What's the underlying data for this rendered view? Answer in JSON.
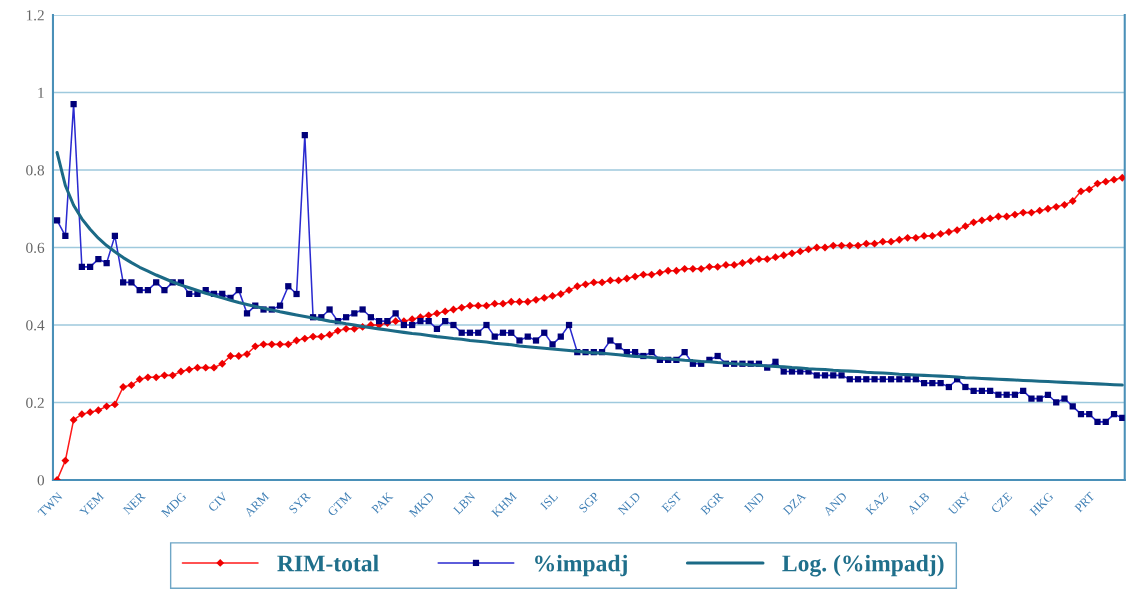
{
  "chart_data": {
    "type": "line",
    "categories": [
      "TWN",
      null,
      null,
      null,
      null,
      "YEM",
      null,
      null,
      null,
      null,
      "NER",
      null,
      null,
      null,
      null,
      "MDG",
      null,
      null,
      null,
      null,
      "CIV",
      null,
      null,
      null,
      null,
      "ARM",
      null,
      null,
      null,
      null,
      "SYR",
      null,
      null,
      null,
      null,
      "GTM",
      null,
      null,
      null,
      null,
      "PAK",
      null,
      null,
      null,
      null,
      "MKD",
      null,
      null,
      null,
      null,
      "LBN",
      null,
      null,
      null,
      null,
      "KHM",
      null,
      null,
      null,
      null,
      "ISL",
      null,
      null,
      null,
      null,
      "SGP",
      null,
      null,
      null,
      null,
      "NLD",
      null,
      null,
      null,
      null,
      "EST",
      null,
      null,
      null,
      null,
      "BGR",
      null,
      null,
      null,
      null,
      "IND",
      null,
      null,
      null,
      null,
      "DZA",
      null,
      null,
      null,
      null,
      "AND",
      null,
      null,
      null,
      null,
      "KAZ",
      null,
      null,
      null,
      null,
      "ALB",
      null,
      null,
      null,
      null,
      "URY",
      null,
      null,
      null,
      null,
      "CZE",
      null,
      null,
      null,
      null,
      "HKG",
      null,
      null,
      null,
      null,
      "PRT",
      null,
      null,
      null,
      null
    ],
    "series": [
      {
        "name": "RIM-total",
        "color": "#ff1a1a",
        "marker": "diamond",
        "values": [
          0,
          0.05,
          0.155,
          0.17,
          0.175,
          0.18,
          0.19,
          0.195,
          0.24,
          0.245,
          0.26,
          0.265,
          0.265,
          0.27,
          0.27,
          0.28,
          0.285,
          0.29,
          0.29,
          0.29,
          0.3,
          0.32,
          0.32,
          0.325,
          0.345,
          0.35,
          0.35,
          0.35,
          0.35,
          0.36,
          0.365,
          0.37,
          0.37,
          0.375,
          0.385,
          0.39,
          0.39,
          0.395,
          0.4,
          0.4,
          0.405,
          0.41,
          0.41,
          0.415,
          0.42,
          0.425,
          0.43,
          0.435,
          0.44,
          0.445,
          0.45,
          0.45,
          0.45,
          0.455,
          0.455,
          0.46,
          0.46,
          0.46,
          0.465,
          0.47,
          0.475,
          0.48,
          0.49,
          0.5,
          0.505,
          0.51,
          0.51,
          0.515,
          0.515,
          0.52,
          0.525,
          0.53,
          0.53,
          0.535,
          0.54,
          0.54,
          0.545,
          0.545,
          0.545,
          0.55,
          0.55,
          0.555,
          0.555,
          0.56,
          0.565,
          0.57,
          0.57,
          0.575,
          0.58,
          0.585,
          0.59,
          0.595,
          0.6,
          0.6,
          0.605,
          0.605,
          0.605,
          0.605,
          0.61,
          0.61,
          0.615,
          0.615,
          0.62,
          0.625,
          0.625,
          0.63,
          0.63,
          0.635,
          0.64,
          0.645,
          0.655,
          0.665,
          0.67,
          0.675,
          0.68,
          0.68,
          0.685,
          0.69,
          0.69,
          0.695,
          0.7,
          0.705,
          0.71,
          0.72,
          0.745,
          0.75,
          0.765,
          0.77,
          0.775,
          0.78
        ]
      },
      {
        "name": "%impadj",
        "color": "#2a2ad0",
        "marker": "square",
        "values": [
          0.67,
          0.63,
          0.97,
          0.55,
          0.55,
          0.57,
          0.56,
          0.63,
          0.51,
          0.51,
          0.49,
          0.49,
          0.51,
          0.49,
          0.51,
          0.51,
          0.48,
          0.48,
          0.49,
          0.48,
          0.48,
          0.47,
          0.49,
          0.43,
          0.45,
          0.44,
          0.44,
          0.45,
          0.5,
          0.48,
          0.89,
          0.42,
          0.42,
          0.44,
          0.41,
          0.42,
          0.43,
          0.44,
          0.42,
          0.41,
          0.41,
          0.43,
          0.4,
          0.4,
          0.41,
          0.41,
          0.39,
          0.41,
          0.4,
          0.38,
          0.38,
          0.38,
          0.4,
          0.37,
          0.38,
          0.38,
          0.36,
          0.37,
          0.36,
          0.38,
          0.35,
          0.37,
          0.4,
          0.33,
          0.33,
          0.33,
          0.33,
          0.36,
          0.345,
          0.33,
          0.33,
          0.32,
          0.33,
          0.31,
          0.31,
          0.31,
          0.33,
          0.3,
          0.3,
          0.31,
          0.32,
          0.3,
          0.3,
          0.3,
          0.3,
          0.3,
          0.29,
          0.305,
          0.28,
          0.28,
          0.28,
          0.28,
          0.27,
          0.27,
          0.27,
          0.27,
          0.26,
          0.26,
          0.26,
          0.26,
          0.26,
          0.26,
          0.26,
          0.26,
          0.26,
          0.25,
          0.25,
          0.25,
          0.24,
          0.26,
          0.24,
          0.23,
          0.23,
          0.23,
          0.22,
          0.22,
          0.22,
          0.23,
          0.21,
          0.21,
          0.22,
          0.2,
          0.21,
          0.19,
          0.17,
          0.17,
          0.15,
          0.15,
          0.17,
          0.16
        ]
      },
      {
        "name": "Log. (%impadj)",
        "color": "#1b6a86",
        "marker": "none",
        "values": [
          0.845,
          0.76,
          0.709,
          0.674,
          0.647,
          0.624,
          0.605,
          0.589,
          0.574,
          0.561,
          0.549,
          0.539,
          0.529,
          0.52,
          0.511,
          0.503,
          0.496,
          0.489,
          0.482,
          0.476,
          0.47,
          0.464,
          0.458,
          0.453,
          0.448,
          0.443,
          0.439,
          0.434,
          0.43,
          0.426,
          0.422,
          0.418,
          0.414,
          0.41,
          0.407,
          0.403,
          0.4,
          0.396,
          0.393,
          0.39,
          0.387,
          0.384,
          0.381,
          0.378,
          0.376,
          0.373,
          0.37,
          0.368,
          0.365,
          0.363,
          0.36,
          0.358,
          0.356,
          0.353,
          0.351,
          0.349,
          0.346,
          0.344,
          0.342,
          0.34,
          0.338,
          0.336,
          0.334,
          0.332,
          0.33,
          0.328,
          0.327,
          0.325,
          0.323,
          0.321,
          0.319,
          0.318,
          0.316,
          0.314,
          0.313,
          0.311,
          0.309,
          0.308,
          0.306,
          0.305,
          0.303,
          0.302,
          0.3,
          0.299,
          0.297,
          0.296,
          0.294,
          0.293,
          0.292,
          0.29,
          0.289,
          0.287,
          0.286,
          0.285,
          0.283,
          0.282,
          0.281,
          0.28,
          0.278,
          0.277,
          0.276,
          0.275,
          0.273,
          0.272,
          0.271,
          0.27,
          0.269,
          0.268,
          0.267,
          0.266,
          0.264,
          0.263,
          0.262,
          0.261,
          0.26,
          0.259,
          0.258,
          0.257,
          0.256,
          0.255,
          0.254,
          0.253,
          0.252,
          0.251,
          0.25,
          0.249,
          0.248,
          0.247,
          0.246,
          0.245
        ]
      }
    ],
    "ylim": [
      0,
      1.2
    ],
    "yticks": [
      0,
      0.2,
      0.4,
      0.6,
      0.8,
      1,
      1.2
    ],
    "grid": "y",
    "legend": "bottom"
  }
}
